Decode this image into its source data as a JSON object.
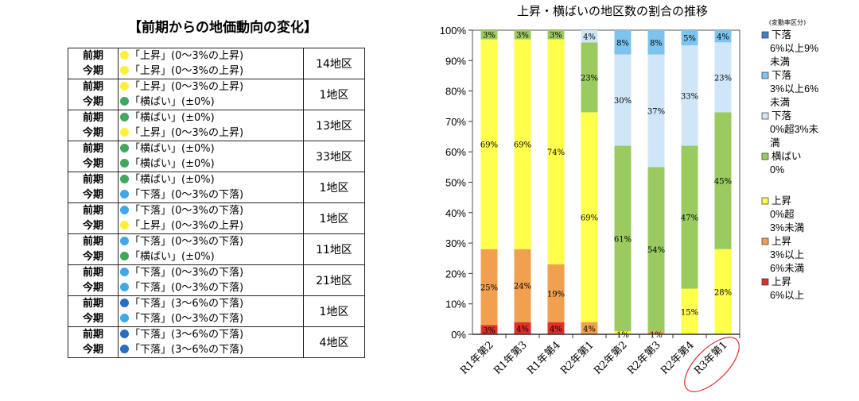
{
  "table": {
    "title": "【前期からの地価動向の変化】",
    "period_labels": [
      "前期",
      "今期"
    ],
    "category_colors": {
      "上昇": "#ffef3a",
      "横ばい": "#3fa85a",
      "下落0-3": "#3fa9e8",
      "下落3-6": "#2a6cc0"
    },
    "rows": [
      {
        "prev": {
          "color": "上昇",
          "text": "「上昇」(0～3%の上昇)"
        },
        "curr": {
          "color": "上昇",
          "text": "「上昇」(0～3%の上昇)"
        },
        "count": "14地区"
      },
      {
        "prev": {
          "color": "上昇",
          "text": "「上昇」(0～3%の上昇)"
        },
        "curr": {
          "color": "横ばい",
          "text": "「横ばい」(±0%)"
        },
        "count": "1地区"
      },
      {
        "prev": {
          "color": "横ばい",
          "text": "「横ばい」(±0%)"
        },
        "curr": {
          "color": "上昇",
          "text": "「上昇」(0～3%の上昇)"
        },
        "count": "13地区"
      },
      {
        "prev": {
          "color": "横ばい",
          "text": "「横ばい」(±0%)"
        },
        "curr": {
          "color": "横ばい",
          "text": "「横ばい」(±0%)"
        },
        "count": "33地区"
      },
      {
        "prev": {
          "color": "横ばい",
          "text": "「横ばい」(±0%)"
        },
        "curr": {
          "color": "下落0-3",
          "text": "「下落」(0～3%の下落)"
        },
        "count": "1地区"
      },
      {
        "prev": {
          "color": "下落0-3",
          "text": "「下落」(0～3%の下落)"
        },
        "curr": {
          "color": "上昇",
          "text": "「上昇」(0～3%の上昇)"
        },
        "count": "1地区"
      },
      {
        "prev": {
          "color": "下落0-3",
          "text": "「下落」(0～3%の下落)"
        },
        "curr": {
          "color": "横ばい",
          "text": "「横ばい」(±0%)"
        },
        "count": "11地区"
      },
      {
        "prev": {
          "color": "下落0-3",
          "text": "「下落」(0～3%の下落)"
        },
        "curr": {
          "color": "下落0-3",
          "text": "「下落」(0～3%の下落)"
        },
        "count": "21地区"
      },
      {
        "prev": {
          "color": "下落3-6",
          "text": "「下落」(3～6%の下落)"
        },
        "curr": {
          "color": "下落0-3",
          "text": "「下落」(0～3%の下落)"
        },
        "count": "1地区"
      },
      {
        "prev": {
          "color": "下落3-6",
          "text": "「下落」(3～6%の下落)"
        },
        "curr": {
          "color": "下落3-6",
          "text": "「下落」(3～6%の下落)"
        },
        "count": "4地区"
      }
    ]
  },
  "chart_data": {
    "type": "bar",
    "stacked": true,
    "title": "上昇・横ばいの地区数の割合の推移",
    "legend_title": "(変動率区分)",
    "legend_placement": "right",
    "categories": [
      "R1年第2",
      "R1年第3",
      "R1年第4",
      "R2年第1",
      "R2年第2",
      "R2年第3",
      "R2年第4",
      "R3年第1"
    ],
    "highlighted_category": "R3年第1",
    "highlight_color": "#e03030",
    "ylim": [
      0,
      100
    ],
    "yticks": [
      "0%",
      "10%",
      "20%",
      "30%",
      "40%",
      "50%",
      "60%",
      "70%",
      "80%",
      "90%",
      "100%"
    ],
    "series": [
      {
        "name": "上昇 6%以上",
        "legend_lines": [
          "上昇",
          "6%以上"
        ],
        "color": "#e0302a",
        "values": [
          3,
          4,
          4,
          0,
          0,
          0,
          0,
          0
        ]
      },
      {
        "name": "上昇 3%以上6%未満",
        "legend_lines": [
          "上昇",
          "3%以上",
          "6%未満"
        ],
        "color": "#f0a04e",
        "values": [
          25,
          24,
          19,
          4,
          0,
          1,
          0,
          0
        ]
      },
      {
        "name": "上昇 0%超3%未満",
        "legend_lines": [
          "上昇",
          "0%超",
          "3%未満"
        ],
        "color": "#ffff4c",
        "values": [
          69,
          69,
          74,
          69,
          1,
          0,
          15,
          28
        ]
      },
      {
        "name": "横ばい 0%",
        "legend_lines": [
          "横ばい",
          "0%"
        ],
        "color": "#9bcb60",
        "values": [
          3,
          3,
          3,
          23,
          61,
          54,
          47,
          45
        ]
      },
      {
        "name": "下落 0%超3%未満",
        "legend_lines": [
          "下落",
          "0%超3%未",
          "満"
        ],
        "color": "#cfe6f8",
        "values": [
          0,
          0,
          0,
          4,
          30,
          37,
          33,
          23
        ]
      },
      {
        "name": "下落 3%以上6%未満",
        "legend_lines": [
          "下落",
          "3%以上6%",
          "未満"
        ],
        "color": "#7cc4ee",
        "values": [
          0,
          0,
          0,
          0,
          8,
          8,
          5,
          4
        ]
      },
      {
        "name": "下落 6%以上9%未満",
        "legend_lines": [
          "下落",
          "6%以上9%",
          "未満"
        ],
        "color": "#3f7fd0",
        "values": [
          0,
          0,
          0,
          0,
          0,
          0,
          0,
          0
        ]
      }
    ]
  }
}
